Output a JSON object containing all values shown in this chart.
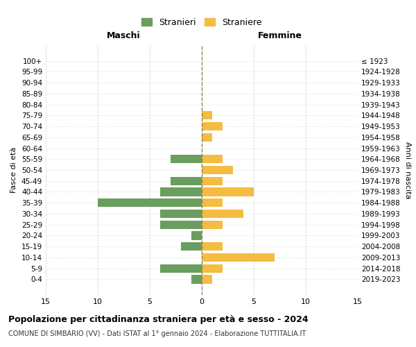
{
  "age_groups_bottom_to_top": [
    "0-4",
    "5-9",
    "10-14",
    "15-19",
    "20-24",
    "25-29",
    "30-34",
    "35-39",
    "40-44",
    "45-49",
    "50-54",
    "55-59",
    "60-64",
    "65-69",
    "70-74",
    "75-79",
    "80-84",
    "85-89",
    "90-94",
    "95-99",
    "100+"
  ],
  "birth_years_bottom_to_top": [
    "2019-2023",
    "2014-2018",
    "2009-2013",
    "2004-2008",
    "1999-2003",
    "1994-1998",
    "1989-1993",
    "1984-1988",
    "1979-1983",
    "1974-1978",
    "1969-1973",
    "1964-1968",
    "1959-1963",
    "1954-1958",
    "1949-1953",
    "1944-1948",
    "1939-1943",
    "1934-1938",
    "1929-1933",
    "1924-1928",
    "≤ 1923"
  ],
  "maschi_bottom_to_top": [
    1,
    4,
    0,
    2,
    1,
    4,
    4,
    10,
    4,
    3,
    0,
    3,
    0,
    0,
    0,
    0,
    0,
    0,
    0,
    0,
    0
  ],
  "femmine_bottom_to_top": [
    1,
    2,
    7,
    2,
    0,
    2,
    4,
    2,
    5,
    2,
    3,
    2,
    0,
    1,
    2,
    1,
    0,
    0,
    0,
    0,
    0
  ],
  "maschi_color": "#6a9e5e",
  "femmine_color": "#f5bc42",
  "background_color": "#ffffff",
  "grid_color": "#cccccc",
  "center_line_color": "#888855",
  "title": "Popolazione per cittadinanza straniera per età e sesso - 2024",
  "subtitle": "COMUNE DI SIMBARIO (VV) - Dati ISTAT al 1° gennaio 2024 - Elaborazione TUTTITALIA.IT",
  "ylabel_left": "Fasce di età",
  "ylabel_right": "Anni di nascita",
  "xlabel_maschi": "Maschi",
  "xlabel_femmine": "Femmine",
  "legend_maschi": "Stranieri",
  "legend_femmine": "Straniere",
  "xlim": 15,
  "xticks": [
    -15,
    -10,
    -5,
    0,
    5,
    10,
    15
  ],
  "xticklabels": [
    "15",
    "10",
    "5",
    "0",
    "5",
    "10",
    "15"
  ]
}
